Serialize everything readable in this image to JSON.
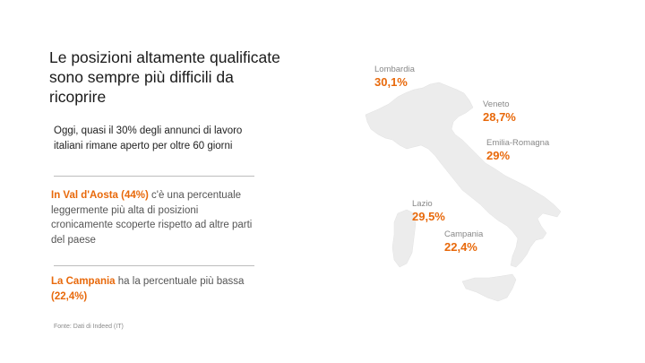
{
  "slide": {
    "title": "Le posizioni altamente qualificate sono sempre più difficili da ricoprire",
    "intro": "Oggi, quasi il 30% degli annunci di lavoro italiani rimane aperto per oltre 60 giorni",
    "para1_highlight": "In Val d'Aosta (44%)",
    "para1_text": " c'è una percentuale leggermente più alta di posizioni cronicamente scoperte rispetto ad altre parti del paese",
    "para2_highlight": "La Campania",
    "para2_text": " ha la percentuale più bassa ",
    "para2_value": "(22,4%)",
    "source": "Fonte: Dati di Indeed (IT)"
  },
  "map": {
    "regions": [
      {
        "name": "Lombardia",
        "value": "30,1%"
      },
      {
        "name": "Veneto",
        "value": "28,7%"
      },
      {
        "name": "Emilia-Romagna",
        "value": "29%"
      },
      {
        "name": "Lazio",
        "value": "29,5%"
      },
      {
        "name": "Campania",
        "value": "22,4%"
      }
    ]
  },
  "colors": {
    "accent": "#e8690b",
    "map_fill": "#ececec",
    "rule": "#bdbdbd"
  }
}
